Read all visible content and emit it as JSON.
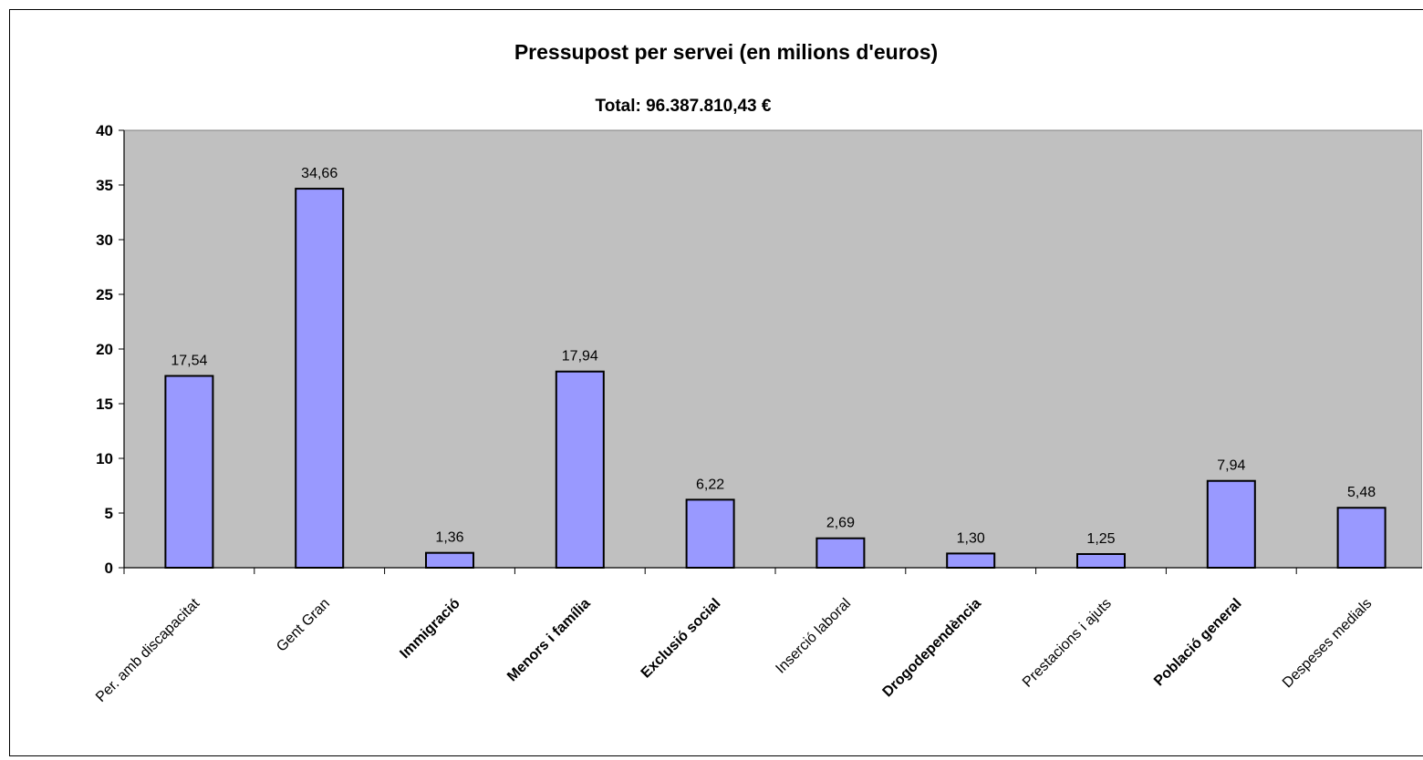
{
  "chart_data": {
    "type": "bar",
    "title": "Pressupost per servei (en milions d'euros)",
    "subtitle": "Total: 96.387.810,43 €",
    "categories": [
      "Per. amb discapacitat",
      "Gent Gran",
      "Immigració",
      "Menors i família",
      "Exclusió social",
      "Inserció laboral",
      "Drogodependència",
      "Prestacions i ajuts",
      "Població general",
      "Despeses medials"
    ],
    "category_bold": [
      false,
      false,
      true,
      true,
      true,
      false,
      true,
      false,
      true,
      false
    ],
    "values": [
      17.54,
      34.66,
      1.36,
      17.94,
      6.22,
      2.69,
      1.3,
      1.25,
      7.94,
      5.48
    ],
    "value_labels": [
      "17,54",
      "34,66",
      "1,36",
      "17,94",
      "6,22",
      "2,69",
      "1,30",
      "1,25",
      "7,94",
      "5,48"
    ],
    "ylim": [
      0,
      40
    ],
    "yticks": [
      0,
      5,
      10,
      15,
      20,
      25,
      30,
      35,
      40
    ],
    "xlabel": "",
    "ylabel": "",
    "grid": false,
    "legend": "none",
    "colors": {
      "bar_fill": "#9999ff",
      "bar_stroke": "#000000",
      "plot_background": "#c0c0c0",
      "axis": "#000000"
    }
  }
}
